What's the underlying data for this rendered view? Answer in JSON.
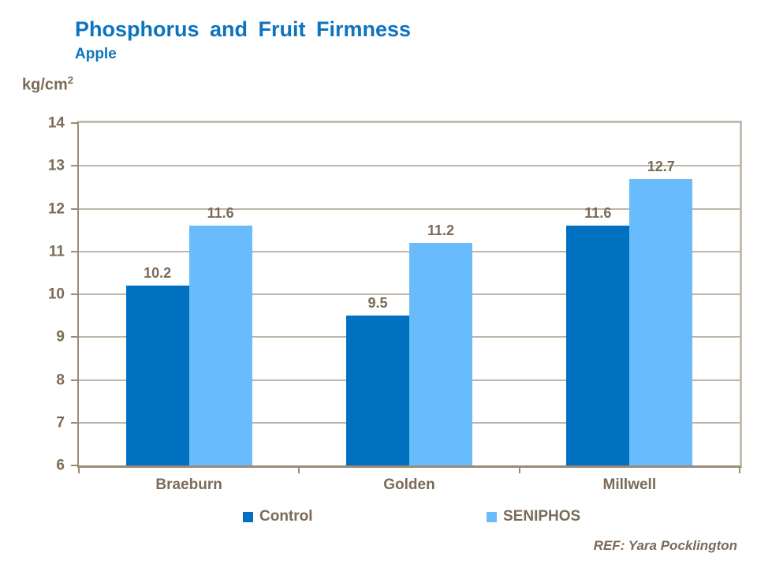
{
  "header": {
    "title": "Phosphorus and Fruit Firmness",
    "subtitle": "Apple"
  },
  "axis_unit": {
    "base": "kg/cm",
    "sup": "2"
  },
  "footer": {
    "ref": "REF: Yara Pocklington"
  },
  "colors": {
    "title_blue": "#0d73be",
    "control_blue": "#0070c0",
    "seniphos_blue": "#69bcfb",
    "text_taupe": "#7b6a58",
    "gridline": "#bfb4a7",
    "axis_line": "#9a8a78",
    "frame_light": "#c6bcb0"
  },
  "chart_data": {
    "type": "bar",
    "categories": [
      "Braeburn",
      "Golden",
      "Millwell"
    ],
    "series": [
      {
        "name": "Control",
        "color": "#0070c0",
        "values": [
          10.2,
          9.5,
          11.6
        ]
      },
      {
        "name": "SENIPHOS",
        "color": "#69bcfb",
        "values": [
          11.6,
          11.2,
          12.7
        ]
      }
    ],
    "title": "Phosphorus and Fruit Firmness",
    "subtitle": "Apple",
    "ylabel": "kg/cm2",
    "xlabel": "",
    "ylim": [
      6,
      14
    ],
    "ytick_step": 1,
    "value_labels_decimals": 1,
    "grid": true,
    "legend_position": "bottom",
    "annotation": "REF: Yara Pocklington"
  }
}
